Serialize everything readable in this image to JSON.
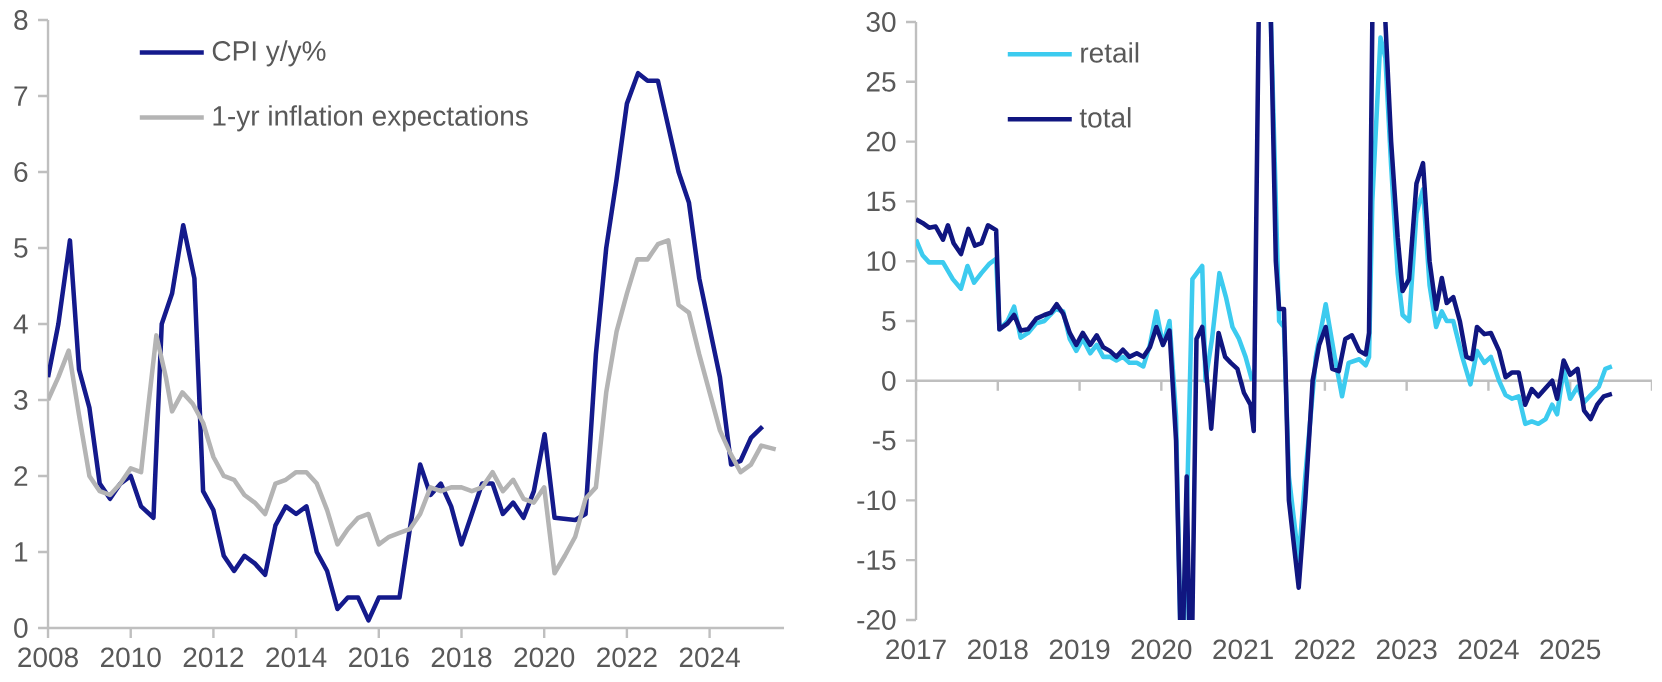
{
  "chart_data": [
    {
      "type": "line",
      "xlim": [
        2008,
        2025.8
      ],
      "xticks": [
        2008,
        2010,
        2012,
        2014,
        2016,
        2018,
        2020,
        2022,
        2024
      ],
      "ylim": [
        0,
        8
      ],
      "yticks": [
        0,
        1,
        2,
        3,
        4,
        5,
        6,
        7,
        8
      ],
      "legend": "top left",
      "line_style": "solid",
      "series": [
        {
          "name": "CPI y/y%",
          "color": "#141a8c",
          "x": [
            2008.0,
            2008.25,
            2008.53,
            2008.75,
            2009.0,
            2009.25,
            2009.5,
            2009.75,
            2010.0,
            2010.25,
            2010.55,
            2010.75,
            2011.0,
            2011.27,
            2011.54,
            2011.75,
            2012.0,
            2012.25,
            2012.5,
            2012.75,
            2013.0,
            2013.25,
            2013.5,
            2013.75,
            2014.0,
            2014.25,
            2014.5,
            2014.75,
            2015.0,
            2015.25,
            2015.5,
            2015.75,
            2016.0,
            2016.5,
            2016.75,
            2017.0,
            2017.25,
            2017.5,
            2017.75,
            2018.0,
            2018.25,
            2018.5,
            2018.75,
            2019.0,
            2019.25,
            2019.5,
            2019.75,
            2020.01,
            2020.25,
            2020.75,
            2021.0,
            2021.25,
            2021.5,
            2021.75,
            2022.0,
            2022.27,
            2022.5,
            2022.75,
            2023.0,
            2023.25,
            2023.5,
            2023.75,
            2024.25,
            2024.52,
            2024.75,
            2025.0,
            2025.28
          ],
          "values": [
            3.3,
            4.0,
            5.1,
            3.4,
            2.9,
            1.9,
            1.7,
            1.9,
            2.0,
            1.6,
            1.45,
            4.0,
            4.4,
            5.3,
            4.6,
            1.8,
            1.55,
            0.95,
            0.75,
            0.95,
            0.85,
            0.7,
            1.35,
            1.6,
            1.5,
            1.6,
            1.0,
            0.75,
            0.25,
            0.4,
            0.4,
            0.1,
            0.4,
            0.4,
            1.3,
            2.15,
            1.75,
            1.9,
            1.6,
            1.1,
            1.5,
            1.9,
            1.9,
            1.5,
            1.65,
            1.45,
            1.8,
            2.55,
            1.45,
            1.42,
            1.5,
            3.6,
            5.0,
            5.9,
            6.9,
            7.3,
            7.2,
            7.2,
            6.6,
            6.0,
            5.6,
            4.6,
            3.3,
            2.15,
            2.2,
            2.5,
            2.65
          ]
        },
        {
          "name": "1-yr inflation expectations",
          "color": "#b4b4b4",
          "x": [
            2008.0,
            2008.25,
            2008.5,
            2008.75,
            2009.0,
            2009.25,
            2009.5,
            2009.75,
            2010.0,
            2010.25,
            2010.4,
            2010.62,
            2010.85,
            2011.0,
            2011.25,
            2011.5,
            2011.75,
            2012.0,
            2012.25,
            2012.5,
            2012.75,
            2013.0,
            2013.25,
            2013.5,
            2013.75,
            2014.0,
            2014.25,
            2014.5,
            2014.75,
            2015.0,
            2015.25,
            2015.5,
            2015.75,
            2016.0,
            2016.25,
            2016.5,
            2016.75,
            2017.0,
            2017.25,
            2017.5,
            2017.75,
            2018.0,
            2018.25,
            2018.5,
            2018.75,
            2019.0,
            2019.25,
            2019.5,
            2019.75,
            2020.0,
            2020.25,
            2020.5,
            2020.75,
            2021.0,
            2021.25,
            2021.5,
            2021.75,
            2022.0,
            2022.25,
            2022.5,
            2022.75,
            2023.0,
            2023.25,
            2023.5,
            2023.75,
            2024.0,
            2024.25,
            2024.5,
            2024.75,
            2025.0,
            2025.25,
            2025.6
          ],
          "values": [
            3.0,
            3.3,
            3.65,
            2.8,
            2.0,
            1.8,
            1.75,
            1.9,
            2.1,
            2.05,
            2.8,
            3.85,
            3.3,
            2.85,
            3.1,
            2.95,
            2.7,
            2.25,
            2.0,
            1.95,
            1.75,
            1.65,
            1.5,
            1.9,
            1.95,
            2.05,
            2.05,
            1.9,
            1.55,
            1.1,
            1.3,
            1.45,
            1.5,
            1.1,
            1.2,
            1.25,
            1.3,
            1.5,
            1.85,
            1.8,
            1.85,
            1.85,
            1.8,
            1.85,
            2.05,
            1.8,
            1.95,
            1.7,
            1.65,
            1.85,
            0.72,
            0.95,
            1.2,
            1.7,
            1.85,
            3.1,
            3.9,
            4.4,
            4.85,
            4.85,
            5.05,
            5.1,
            4.25,
            4.15,
            3.6,
            3.1,
            2.6,
            2.3,
            2.05,
            2.15,
            2.4,
            2.35
          ]
        }
      ]
    },
    {
      "type": "line",
      "xlim": [
        2017,
        2026
      ],
      "xticks": [
        2017,
        2018,
        2019,
        2020,
        2021,
        2022,
        2023,
        2024,
        2025,
        {
          "value": 2026,
          "label": null
        }
      ],
      "ylim": [
        -20,
        30
      ],
      "yticks": [
        -20,
        -15,
        -10,
        -5,
        0,
        5,
        10,
        15,
        20,
        25,
        30
      ],
      "legend": "top left",
      "line_style": "solid",
      "series": [
        {
          "name": "retail",
          "color": "#3ccbef",
          "x": [
            2017.0,
            2017.08,
            2017.16,
            2017.24,
            2017.33,
            2017.45,
            2017.55,
            2017.63,
            2017.71,
            2017.8,
            2017.9,
            2017.98,
            2018.02,
            2018.12,
            2018.2,
            2018.28,
            2018.37,
            2018.47,
            2018.57,
            2018.71,
            2018.8,
            2018.88,
            2018.96,
            2019.04,
            2019.13,
            2019.21,
            2019.29,
            2019.37,
            2019.45,
            2019.53,
            2019.61,
            2019.7,
            2019.78,
            2019.86,
            2019.94,
            2020.02,
            2020.1,
            2020.18,
            2020.23,
            2020.25,
            2020.28,
            2020.38,
            2020.5,
            2020.54,
            2020.62,
            2020.71,
            2020.79,
            2020.87,
            2020.95,
            2021.03,
            2021.11,
            2021.19,
            2021.27,
            2021.34,
            2021.44,
            2021.5,
            2021.56,
            2021.68,
            2021.76,
            2021.89,
            2022.01,
            2022.12,
            2022.21,
            2022.29,
            2022.42,
            2022.5,
            2022.54,
            2022.58,
            2022.68,
            2022.74,
            2022.81,
            2022.89,
            2022.95,
            2023.03,
            2023.12,
            2023.2,
            2023.28,
            2023.36,
            2023.43,
            2023.49,
            2023.57,
            2023.68,
            2023.78,
            2023.86,
            2023.95,
            2024.03,
            2024.13,
            2024.21,
            2024.29,
            2024.37,
            2024.45,
            2024.53,
            2024.61,
            2024.7,
            2024.78,
            2024.84,
            2024.92,
            2025.0,
            2025.09,
            2025.17,
            2025.25,
            2025.35,
            2025.43,
            2025.51
          ],
          "values": [
            11.8,
            10.5,
            9.9,
            9.9,
            9.9,
            8.5,
            7.7,
            9.6,
            8.2,
            9.0,
            9.8,
            10.2,
            4.3,
            5.0,
            6.2,
            3.6,
            4.0,
            4.8,
            5.0,
            6.0,
            5.8,
            3.5,
            2.5,
            3.5,
            2.3,
            3.0,
            2.0,
            2.0,
            1.7,
            2.0,
            1.5,
            1.5,
            1.2,
            3.0,
            5.8,
            3.0,
            5.0,
            -3,
            -20,
            null,
            -20,
            8.5,
            9.6,
            0,
            3.5,
            9.0,
            7.0,
            4.5,
            3.5,
            2.0,
            0,
            null,
            null,
            30,
            5.0,
            4.5,
            -8,
            -15,
            -8,
            2,
            6.4,
            2.0,
            -1.3,
            1.5,
            1.8,
            1.3,
            2.0,
            15,
            28.7,
            27,
            18,
            9,
            5.5,
            5.0,
            14,
            16,
            8,
            4.5,
            5.8,
            5.0,
            5.0,
            2.0,
            -0.3,
            2.5,
            1.5,
            2.0,
            0,
            -1.2,
            -1.5,
            -1.3,
            -3.6,
            -3.4,
            -3.6,
            -3.2,
            -2.0,
            -2.8,
            1.0,
            -1.5,
            -0.5,
            -1.8,
            -1.2,
            -0.5,
            1.0,
            1.2
          ]
        },
        {
          "name": "total",
          "color": "#101680",
          "x": [
            2017.0,
            2017.08,
            2017.16,
            2017.24,
            2017.33,
            2017.39,
            2017.46,
            2017.55,
            2017.64,
            2017.72,
            2017.8,
            2017.88,
            2017.98,
            2018.02,
            2018.12,
            2018.2,
            2018.28,
            2018.37,
            2018.47,
            2018.57,
            2018.65,
            2018.72,
            2018.8,
            2018.88,
            2018.96,
            2019.04,
            2019.13,
            2019.21,
            2019.29,
            2019.37,
            2019.45,
            2019.53,
            2019.61,
            2019.7,
            2019.78,
            2019.86,
            2019.94,
            2020.02,
            2020.1,
            2020.18,
            2020.23,
            2020.25,
            2020.27,
            2020.31,
            2020.34,
            2020.36,
            2020.38,
            2020.43,
            2020.5,
            2020.61,
            2020.7,
            2020.78,
            2020.85,
            2020.93,
            2021.01,
            2021.09,
            2021.13,
            2021.19,
            2021.27,
            2021.34,
            2021.4,
            2021.44,
            2021.5,
            2021.56,
            2021.68,
            2021.76,
            2021.85,
            2021.93,
            2022.01,
            2022.09,
            2022.17,
            2022.25,
            2022.33,
            2022.42,
            2022.5,
            2022.54,
            2022.58,
            2022.66,
            2022.74,
            2022.81,
            2022.89,
            2022.95,
            2023.03,
            2023.12,
            2023.2,
            2023.28,
            2023.36,
            2023.43,
            2023.49,
            2023.57,
            2023.65,
            2023.73,
            2023.8,
            2023.86,
            2023.95,
            2024.03,
            2024.13,
            2024.21,
            2024.29,
            2024.37,
            2024.45,
            2024.53,
            2024.61,
            2024.7,
            2024.78,
            2024.84,
            2024.92,
            2025.0,
            2025.09,
            2025.17,
            2025.25,
            2025.33,
            2025.41,
            2025.51
          ],
          "values": [
            13.5,
            13.2,
            12.8,
            12.9,
            11.8,
            13.0,
            11.5,
            10.6,
            12.7,
            11.3,
            11.5,
            13.0,
            12.6,
            4.3,
            4.8,
            5.5,
            4.2,
            4.3,
            5.2,
            5.5,
            5.7,
            6.4,
            5.6,
            4.0,
            3.0,
            4.0,
            3.0,
            3.8,
            2.8,
            2.5,
            2.0,
            2.6,
            2.0,
            2.3,
            2.0,
            2.8,
            4.5,
            3.0,
            4.2,
            -5,
            -20,
            null,
            -20,
            -8,
            -20,
            null,
            -20,
            3.5,
            4.5,
            -4,
            4.0,
            2.0,
            1.5,
            1.0,
            -1,
            -2,
            -4.2,
            30,
            null,
            30,
            10,
            6.0,
            6.0,
            -10,
            -17.3,
            -10,
            0,
            3,
            4.5,
            1.0,
            0.8,
            3.5,
            3.8,
            2.5,
            2.2,
            4.0,
            30,
            null,
            30,
            20,
            12,
            7.5,
            8.5,
            16.5,
            18.2,
            10,
            6.0,
            8.6,
            6.5,
            7.0,
            5.0,
            2.0,
            1.8,
            4.5,
            3.9,
            4.0,
            2.5,
            0.3,
            0.7,
            0.7,
            -2.0,
            -0.7,
            -1.3,
            -0.6,
            0,
            -1.5,
            1.7,
            0.5,
            1.0,
            -2.5,
            -3.2,
            -2.0,
            -1.3,
            -1.1
          ]
        }
      ]
    }
  ]
}
